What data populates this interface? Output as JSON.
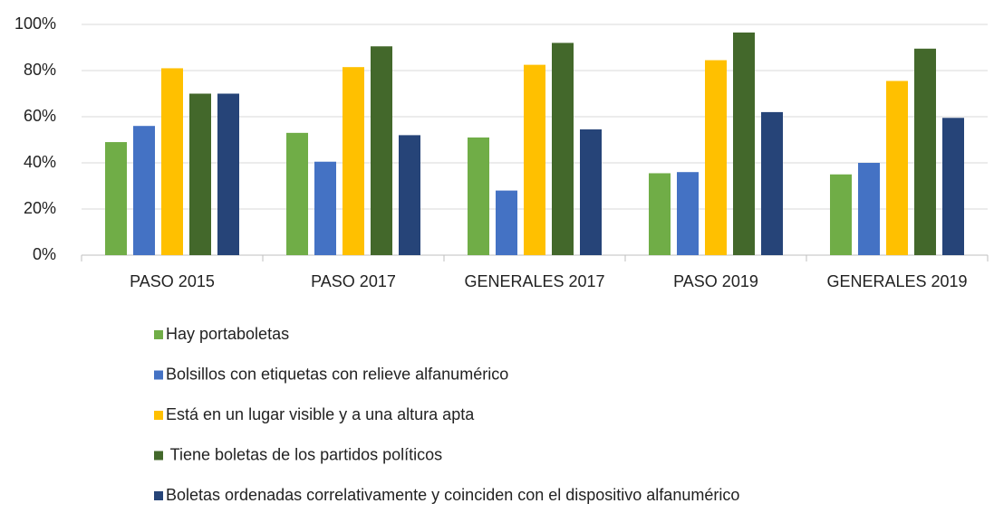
{
  "chart_data": {
    "type": "bar",
    "categories": [
      "PASO 2015",
      "PASO 2017",
      "GENERALES 2017",
      "PASO 2019",
      "GENERALES 2019"
    ],
    "series": [
      {
        "name": "Hay portaboletas",
        "color": "#70ad47",
        "values": [
          49,
          53,
          51,
          35.5,
          35
        ]
      },
      {
        "name": "Bolsillos con etiquetas con relieve alfanumérico",
        "color": "#4472c4",
        "values": [
          56,
          40.5,
          28,
          36,
          40
        ]
      },
      {
        "name": "Está en un lugar visible y a una altura apta",
        "color": "#ffc000",
        "values": [
          81,
          81.5,
          82.5,
          84.5,
          75.5
        ]
      },
      {
        "name": " Tiene boletas de los partidos políticos",
        "color": "#43682b",
        "values": [
          70,
          90.5,
          92,
          96.5,
          89.5
        ]
      },
      {
        "name": "Boletas ordenadas correlativamente y coinciden con el dispositivo alfanumérico",
        "color": "#264478",
        "values": [
          70,
          52,
          54.5,
          62,
          59.5
        ]
      }
    ],
    "ylim": [
      0,
      100
    ],
    "yticks": [
      {
        "value": 0,
        "label": "0%"
      },
      {
        "value": 20,
        "label": "20%"
      },
      {
        "value": 40,
        "label": "40%"
      },
      {
        "value": 60,
        "label": "60%"
      },
      {
        "value": 80,
        "label": "80%"
      },
      {
        "value": 100,
        "label": "100%"
      }
    ],
    "grid": true,
    "legend": "bottom"
  }
}
